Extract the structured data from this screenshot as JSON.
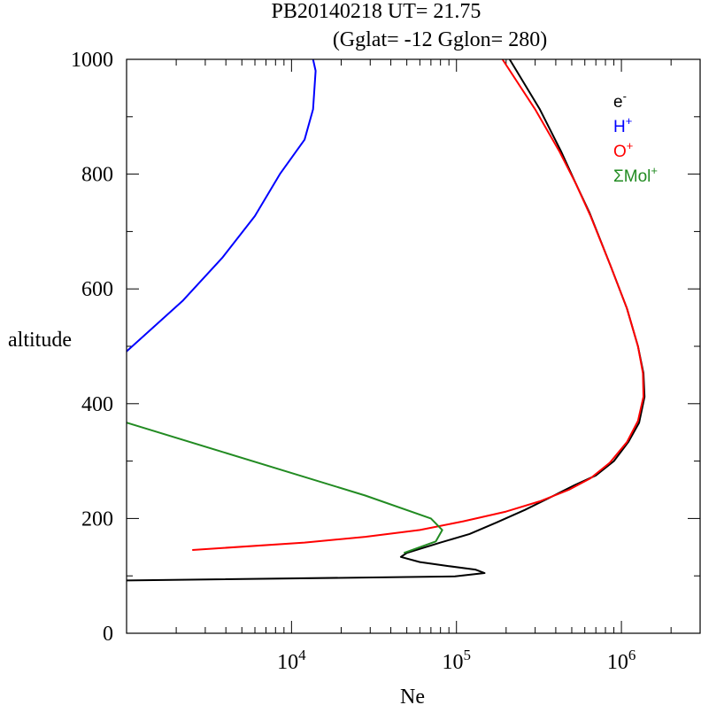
{
  "chart_data": {
    "type": "line",
    "title_line1": "PB20140218   UT=  21.75",
    "title_line2": "(Gglat= -12   Gglon=  280)",
    "xlabel": "Ne",
    "ylabel": "altitude",
    "xscale": "log",
    "xlim": [
      1000,
      3000000
    ],
    "ylim": [
      0,
      1000
    ],
    "x_tick_labels": [
      {
        "value": 10000,
        "base": "10",
        "exp": "4"
      },
      {
        "value": 100000,
        "base": "10",
        "exp": "5"
      },
      {
        "value": 1000000,
        "base": "10",
        "exp": "6"
      }
    ],
    "y_ticks": [
      0,
      200,
      400,
      600,
      800,
      1000
    ],
    "y_tick_labels": [
      "0",
      "200",
      "400",
      "600",
      "800",
      "1000"
    ],
    "legend_position": "top-right",
    "series": [
      {
        "name": "e-",
        "label_base": "e",
        "label_sup": "-",
        "color": "#000000",
        "points": [
          [
            1000,
            92
          ],
          [
            98000,
            99
          ],
          [
            148000,
            105
          ],
          [
            130000,
            111
          ],
          [
            90000,
            117
          ],
          [
            60000,
            124
          ],
          [
            46000,
            133
          ],
          [
            50000,
            140
          ],
          [
            80000,
            158
          ],
          [
            120000,
            173
          ],
          [
            175000,
            193
          ],
          [
            260000,
            215
          ],
          [
            390000,
            240
          ],
          [
            520000,
            258
          ],
          [
            700000,
            275
          ],
          [
            900000,
            300
          ],
          [
            1100000,
            333
          ],
          [
            1280000,
            367
          ],
          [
            1380000,
            412
          ],
          [
            1360000,
            453
          ],
          [
            1260000,
            500
          ],
          [
            1080000,
            566
          ],
          [
            860000,
            640
          ],
          [
            640000,
            733
          ],
          [
            530000,
            783
          ],
          [
            430000,
            840
          ],
          [
            320000,
            913
          ],
          [
            210000,
            1000
          ]
        ]
      },
      {
        "name": "H+",
        "label_base": "H",
        "label_sup": "+",
        "color": "#0000ff",
        "points": [
          [
            1000,
            491
          ],
          [
            2200,
            580
          ],
          [
            3800,
            654
          ],
          [
            6000,
            727
          ],
          [
            8500,
            800
          ],
          [
            12000,
            860
          ],
          [
            13500,
            913
          ],
          [
            14000,
            980
          ],
          [
            13500,
            1000
          ]
        ]
      },
      {
        "name": "O+",
        "label_base": "O",
        "label_sup": "+",
        "color": "#ff0000",
        "points": [
          [
            2500,
            145
          ],
          [
            12000,
            158
          ],
          [
            28000,
            168
          ],
          [
            60000,
            180
          ],
          [
            110000,
            195
          ],
          [
            200000,
            212
          ],
          [
            320000,
            230
          ],
          [
            480000,
            250
          ],
          [
            650000,
            270
          ],
          [
            850000,
            297
          ],
          [
            1080000,
            333
          ],
          [
            1260000,
            370
          ],
          [
            1360000,
            412
          ],
          [
            1350000,
            453
          ],
          [
            1260000,
            500
          ],
          [
            1080000,
            566
          ],
          [
            860000,
            640
          ],
          [
            650000,
            727
          ],
          [
            530000,
            783
          ],
          [
            420000,
            840
          ],
          [
            300000,
            913
          ],
          [
            190000,
            1000
          ]
        ]
      },
      {
        "name": "ΣMol+",
        "label_base": "ΣMol",
        "label_sup": "+",
        "color": "#228b22",
        "points": [
          [
            1000,
            367
          ],
          [
            28000,
            240
          ],
          [
            70000,
            200
          ],
          [
            82000,
            180
          ],
          [
            75000,
            160
          ],
          [
            48000,
            140
          ]
        ]
      }
    ]
  }
}
